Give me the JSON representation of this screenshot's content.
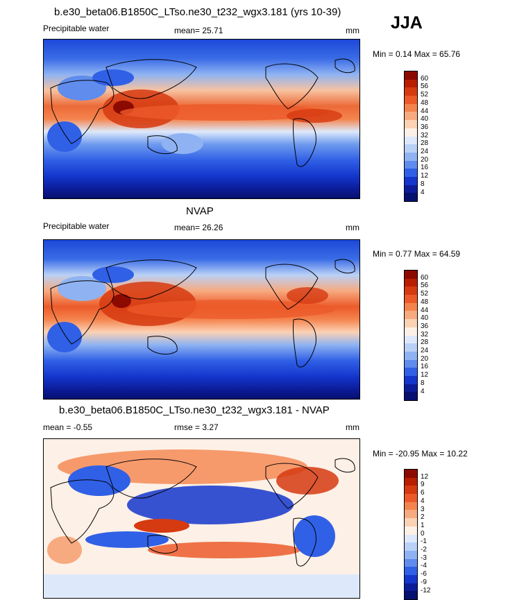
{
  "season": "JJA",
  "panels": [
    {
      "id": "model",
      "title": "b.e30_beta06.B1850C_LTso.ne30_t232_wgx3.181 (yrs 10-39)",
      "left_label": "Precipitable water",
      "center_label": "mean=  25.71",
      "units": "mm",
      "minmax": "Min =   0.14 Max =  65.76"
    },
    {
      "id": "obs",
      "title": "NVAP",
      "left_label": "Precipitable water",
      "center_label": "mean=  26.26",
      "units": "mm",
      "minmax": "Min =   0.77 Max =  64.59"
    },
    {
      "id": "diff",
      "title": "b.e30_beta06.B1850C_LTso.ne30_t232_wgx3.181 - NVAP",
      "left_label": "mean =  -0.55",
      "center_label": "rmse =   3.27",
      "units": "mm",
      "minmax": "Min = -20.95 Max =  10.22"
    }
  ],
  "colorbar_abs": {
    "labels": [
      "60",
      "56",
      "52",
      "48",
      "44",
      "40",
      "36",
      "32",
      "28",
      "24",
      "20",
      "16",
      "12",
      "8",
      "4"
    ],
    "colors": [
      "#8c0a00",
      "#b81e00",
      "#d63a10",
      "#ec5a2a",
      "#f4844e",
      "#f7aa80",
      "#fbd2b4",
      "#fdf0e6",
      "#dde9fb",
      "#b9d1f7",
      "#8fb3f2",
      "#5f8ced",
      "#3060e6",
      "#1436cc",
      "#0c1c99",
      "#06106e"
    ]
  },
  "colorbar_diff": {
    "labels": [
      "12",
      "9",
      "6",
      "4",
      "3",
      "2",
      "1",
      "0",
      "-1",
      "-2",
      "-3",
      "-4",
      "-6",
      "-9",
      "-12"
    ],
    "colors": [
      "#8c0a00",
      "#b81e00",
      "#d63a10",
      "#ec5a2a",
      "#f4844e",
      "#f7aa80",
      "#fbd2b4",
      "#fdf0e6",
      "#dde9fb",
      "#b9d1f7",
      "#8fb3f2",
      "#5f8ced",
      "#3060e6",
      "#1436cc",
      "#0c1c99",
      "#06106e"
    ]
  }
}
